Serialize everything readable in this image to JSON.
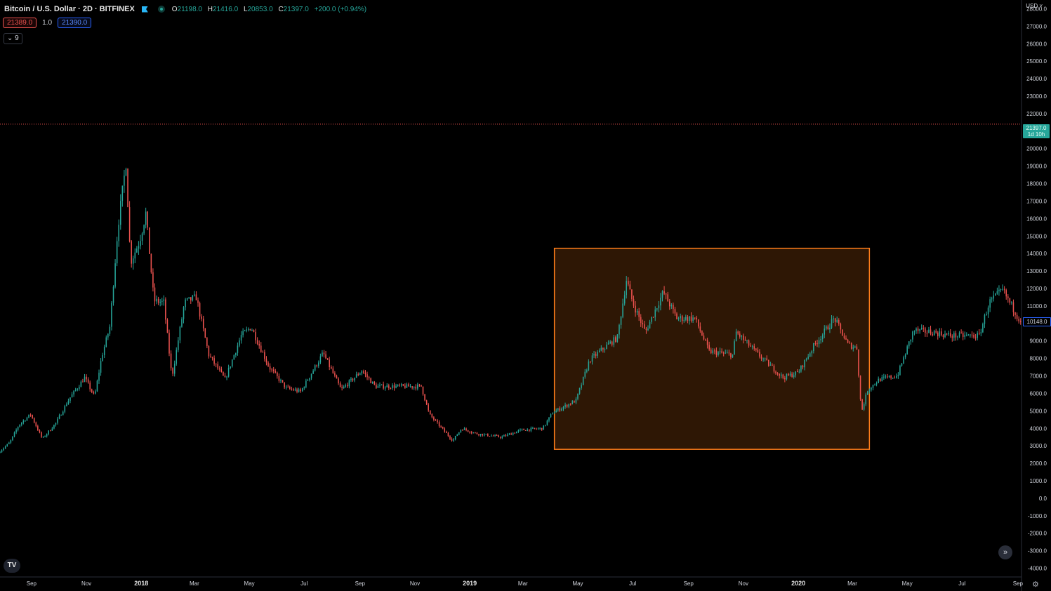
{
  "header": {
    "symbol_title": "Bitcoin / U.S. Dollar · 2D · BITFINEX",
    "open_label": "O",
    "open": "21198.0",
    "high_label": "H",
    "high": "21416.0",
    "low_label": "L",
    "low": "20853.0",
    "close_label": "C",
    "close": "21397.0",
    "change": "+200.0 (+0.94%)"
  },
  "trade": {
    "bid": "21389.0",
    "spread": "1.0",
    "ask": "21390.0"
  },
  "indicators_collapse": "9",
  "price_axis": {
    "currency": "USD",
    "current_price": "21397.0",
    "countdown": "1d 10h",
    "marked_price": "10148.0"
  },
  "colors": {
    "up": "#26a69a",
    "down": "#ef5350",
    "background": "#000000",
    "highlight": "#ff7d1a"
  },
  "chart_data": {
    "type": "candlestick",
    "title": "Bitcoin / U.S. Dollar · 2D · BITFINEX",
    "ylim": [
      -4500,
      28500
    ],
    "y_ticks": [
      28000,
      27000,
      26000,
      25000,
      24000,
      23000,
      22000,
      20000,
      19000,
      18000,
      17000,
      16000,
      15000,
      14000,
      13000,
      12000,
      11000,
      10000,
      9000,
      8000,
      7000,
      6000,
      5000,
      4000,
      3000,
      2000,
      1000,
      0,
      -1000,
      -2000,
      -3000,
      -4000
    ],
    "x_ticks": [
      "Sep",
      "Nov",
      "2018",
      "Mar",
      "May",
      "Jul",
      "Sep",
      "Nov",
      "2019",
      "Mar",
      "May",
      "Jul",
      "Sep",
      "Nov",
      "2020",
      "Mar",
      "May",
      "Jul",
      "Sep"
    ],
    "xlim": [
      "2017-07-28",
      "2020-09-05"
    ],
    "current_price_line": 21397,
    "highlight_range": {
      "from": "2019-04-05",
      "to": "2020-03-20",
      "low": 2800,
      "high": 14300
    },
    "price_path": [
      [
        "2017-07-28",
        2600
      ],
      [
        "2017-08-10",
        3200
      ],
      [
        "2017-08-20",
        4200
      ],
      [
        "2017-09-02",
        4800
      ],
      [
        "2017-09-15",
        3400
      ],
      [
        "2017-09-30",
        4300
      ],
      [
        "2017-10-15",
        5700
      ],
      [
        "2017-11-01",
        6900
      ],
      [
        "2017-11-12",
        5800
      ],
      [
        "2017-11-20",
        8100
      ],
      [
        "2017-11-29",
        9800
      ],
      [
        "2017-12-08",
        15500
      ],
      [
        "2017-12-17",
        19200
      ],
      [
        "2017-12-22",
        13500
      ],
      [
        "2018-01-01",
        14700
      ],
      [
        "2018-01-08",
        16300
      ],
      [
        "2018-01-17",
        11300
      ],
      [
        "2018-01-28",
        11200
      ],
      [
        "2018-02-06",
        6900
      ],
      [
        "2018-02-20",
        11200
      ],
      [
        "2018-03-05",
        11500
      ],
      [
        "2018-03-19",
        8200
      ],
      [
        "2018-04-06",
        6800
      ],
      [
        "2018-04-24",
        9300
      ],
      [
        "2018-05-05",
        9800
      ],
      [
        "2018-05-25",
        7500
      ],
      [
        "2018-06-13",
        6300
      ],
      [
        "2018-06-29",
        6100
      ],
      [
        "2018-07-24",
        8300
      ],
      [
        "2018-08-13",
        6200
      ],
      [
        "2018-09-05",
        7300
      ],
      [
        "2018-09-20",
        6400
      ],
      [
        "2018-10-11",
        6400
      ],
      [
        "2018-11-10",
        6400
      ],
      [
        "2018-11-19",
        4800
      ],
      [
        "2018-12-15",
        3300
      ],
      [
        "2018-12-25",
        4000
      ],
      [
        "2019-01-10",
        3700
      ],
      [
        "2019-02-07",
        3500
      ],
      [
        "2019-03-01",
        3900
      ],
      [
        "2019-03-25",
        4000
      ],
      [
        "2019-04-05",
        4900
      ],
      [
        "2019-05-01",
        5600
      ],
      [
        "2019-05-16",
        7900
      ],
      [
        "2019-06-01",
        8600
      ],
      [
        "2019-06-16",
        9200
      ],
      [
        "2019-06-26",
        12500
      ],
      [
        "2019-07-03",
        11200
      ],
      [
        "2019-07-17",
        9500
      ],
      [
        "2019-08-06",
        11800
      ],
      [
        "2019-08-21",
        10300
      ],
      [
        "2019-09-10",
        10300
      ],
      [
        "2019-09-26",
        8400
      ],
      [
        "2019-10-22",
        8200
      ],
      [
        "2019-10-26",
        9500
      ],
      [
        "2019-11-20",
        8200
      ],
      [
        "2019-12-17",
        6900
      ],
      [
        "2020-01-03",
        7200
      ],
      [
        "2020-01-20",
        8700
      ],
      [
        "2020-02-12",
        10300
      ],
      [
        "2020-02-27",
        8800
      ],
      [
        "2020-03-08",
        8600
      ],
      [
        "2020-03-13",
        4900
      ],
      [
        "2020-03-20",
        6200
      ],
      [
        "2020-04-02",
        6800
      ],
      [
        "2020-04-22",
        7000
      ],
      [
        "2020-05-10",
        9600
      ],
      [
        "2020-06-01",
        9500
      ],
      [
        "2020-06-20",
        9300
      ],
      [
        "2020-07-22",
        9300
      ],
      [
        "2020-08-02",
        11200
      ],
      [
        "2020-08-17",
        11900
      ],
      [
        "2020-09-05",
        10200
      ]
    ]
  }
}
